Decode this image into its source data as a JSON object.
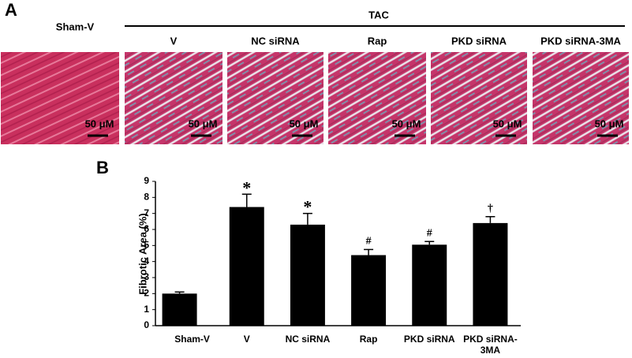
{
  "panel_a": {
    "label": "A",
    "group": "TAC",
    "columns": [
      "Sham-V",
      "V",
      "NC siRNA",
      "Rap",
      "PKD siRNA",
      "PKD siRNA-3MA"
    ],
    "scale_bar": "50 μM"
  },
  "panel_b_label": "B",
  "chart_data": {
    "type": "bar",
    "y_label": "Fibrotic Area (%)",
    "categories": [
      "Sham-V",
      "V",
      "NC siRNA",
      "Rap",
      "PKD siRNA",
      "PKD siRNA-3MA"
    ],
    "values": [
      2.0,
      7.4,
      6.3,
      4.4,
      5.05,
      6.4
    ],
    "errors": [
      0.1,
      0.8,
      0.7,
      0.35,
      0.2,
      0.4
    ],
    "annotations": [
      null,
      "*",
      "*",
      "#",
      "#",
      "†"
    ],
    "color": "#000000",
    "ylim": [
      0,
      9
    ],
    "yticks": [
      0,
      1,
      2,
      3,
      4,
      5,
      6,
      7,
      8,
      9
    ]
  }
}
